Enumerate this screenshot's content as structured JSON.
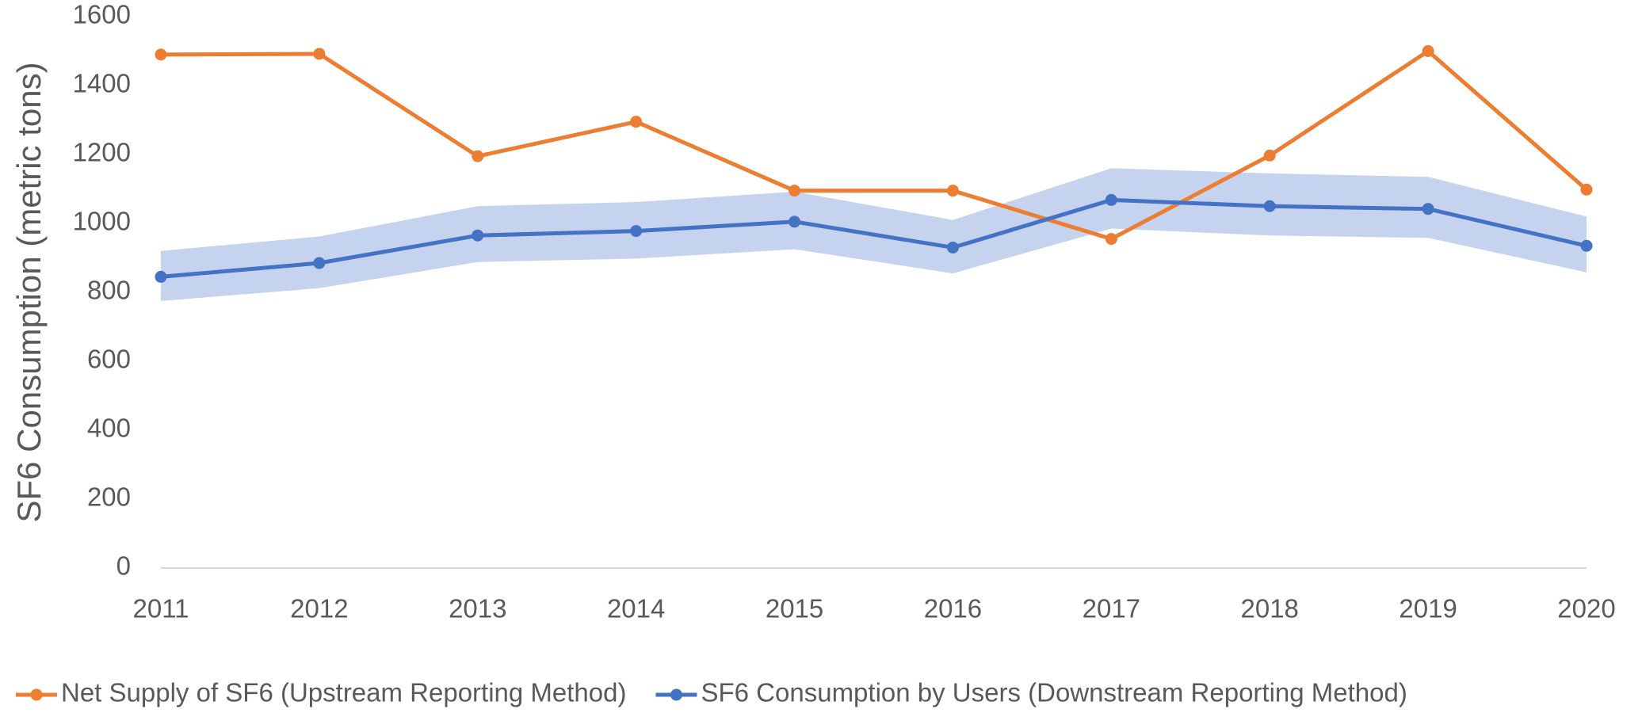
{
  "chart_data": {
    "type": "line",
    "y_label": "SF6 Consumption (metric tons)",
    "categories": [
      "2011",
      "2012",
      "2013",
      "2014",
      "2015",
      "2016",
      "2017",
      "2018",
      "2019",
      "2020"
    ],
    "series": [
      {
        "name": "Net Supply of SF6 (Upstream Reporting Method)",
        "color": "#ed7d31",
        "values": [
          1490,
          1492,
          1195,
          1295,
          1095,
          1095,
          955,
          1197,
          1500,
          1098
        ]
      },
      {
        "name": "SF6 Consumption by Users (Downstream Reporting Method)",
        "color": "#4472c4",
        "values": [
          845,
          885,
          965,
          978,
          1005,
          930,
          1068,
          1050,
          1042,
          935
        ]
      }
    ],
    "band": {
      "color": "#c5d3ee",
      "upper": [
        920,
        962,
        1050,
        1062,
        1092,
        1010,
        1160,
        1145,
        1135,
        1020
      ],
      "lower": [
        775,
        812,
        888,
        898,
        925,
        855,
        985,
        965,
        958,
        858
      ]
    },
    "ylim": [
      0,
      1600
    ],
    "yticks": [
      0,
      200,
      400,
      600,
      800,
      1000,
      1200,
      1400,
      1600
    ],
    "grid": false,
    "legend": "bottom"
  }
}
